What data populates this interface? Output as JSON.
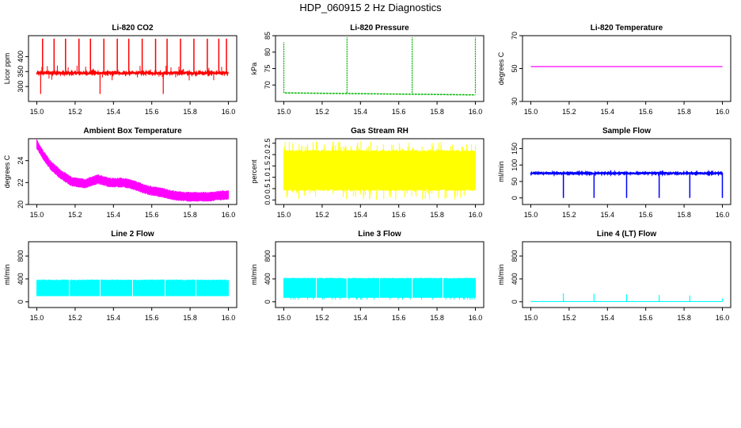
{
  "figure": {
    "title": "HDP_060915  2 Hz Diagnostics"
  },
  "chart_data": [
    {
      "type": "line",
      "title": "Li-820 CO2",
      "xlabel": "",
      "ylabel": "Licor ppm",
      "xlim": [
        15.0,
        16.0
      ],
      "ylim": [
        250,
        470
      ],
      "x_ticks": [
        "15.0",
        "15.2",
        "15.4",
        "15.6",
        "15.8",
        "16.0"
      ],
      "y_ticks": [
        300,
        350,
        400
      ],
      "color": "#ff0000",
      "series": [
        {
          "name": "CO2",
          "baseline": 345,
          "spikes_up_to": 460,
          "spike_x": [
            15.03,
            15.09,
            15.15,
            15.22,
            15.28,
            15.35,
            15.42,
            15.48,
            15.55,
            15.62,
            15.68,
            15.75,
            15.82,
            15.89,
            15.95,
            15.99
          ],
          "dips_to": 275
        }
      ]
    },
    {
      "type": "line",
      "title": "Li-820 Pressure",
      "xlabel": "",
      "ylabel": "kPa",
      "xlim": [
        15.0,
        16.0
      ],
      "ylim": [
        65,
        85
      ],
      "x_ticks": [
        "15.0",
        "15.2",
        "15.4",
        "15.6",
        "15.8",
        "16.0"
      ],
      "y_ticks": [
        70,
        75,
        80,
        85
      ],
      "color": "#00b400",
      "series": [
        {
          "name": "Pressure",
          "start": 67.6,
          "end": 67.0,
          "spike_x": [
            15.0,
            15.33,
            15.67,
            16.0
          ],
          "spike_to": 84.5
        }
      ]
    },
    {
      "type": "line",
      "title": "Li-820 Temperature",
      "xlabel": "",
      "ylabel": "degrees C",
      "xlim": [
        15.0,
        16.0
      ],
      "ylim": [
        30,
        70
      ],
      "x_ticks": [
        "15.0",
        "15.2",
        "15.4",
        "15.6",
        "15.8",
        "16.0"
      ],
      "y_ticks": [
        30,
        50,
        70
      ],
      "color": "#ff00ff",
      "series": [
        {
          "name": "Temperature",
          "value": 51.2
        }
      ]
    },
    {
      "type": "line",
      "title": "Ambient Box Temperature",
      "xlabel": "",
      "ylabel": "degrees C",
      "xlim": [
        15.0,
        16.0
      ],
      "ylim": [
        20,
        26
      ],
      "x_ticks": [
        "15.0",
        "15.2",
        "15.4",
        "15.6",
        "15.8",
        "16.0"
      ],
      "y_ticks": [
        20,
        22,
        24
      ],
      "color": "#ff00ff",
      "series": [
        {
          "name": "Box Temp",
          "points": [
            [
              15.0,
              25.5
            ],
            [
              15.03,
              24.6
            ],
            [
              15.07,
              23.6
            ],
            [
              15.12,
              22.8
            ],
            [
              15.18,
              22.1
            ],
            [
              15.25,
              21.9
            ],
            [
              15.32,
              22.3
            ],
            [
              15.38,
              22.0
            ],
            [
              15.45,
              22.0
            ],
            [
              15.5,
              21.8
            ],
            [
              15.58,
              21.3
            ],
            [
              15.65,
              21.1
            ],
            [
              15.72,
              20.8
            ],
            [
              15.8,
              20.7
            ],
            [
              15.9,
              20.7
            ],
            [
              16.0,
              20.9
            ]
          ]
        }
      ]
    },
    {
      "type": "line",
      "title": "Gas Stream RH",
      "xlabel": "",
      "ylabel": "percent",
      "xlim": [
        15.0,
        16.0
      ],
      "ylim": [
        -0.2,
        2.7
      ],
      "x_ticks": [
        "15.0",
        "15.2",
        "15.4",
        "15.6",
        "15.8",
        "16.0"
      ],
      "y_ticks": [
        0.0,
        0.5,
        1.0,
        1.5,
        2.0,
        2.5
      ],
      "color": "#ffff00",
      "series": [
        {
          "name": "RH",
          "band_low": 0.5,
          "band_high": 2.1,
          "min": 0.0,
          "max": 2.6
        }
      ]
    },
    {
      "type": "line",
      "title": "Sample Flow",
      "xlabel": "",
      "ylabel": "ml/min",
      "xlim": [
        15.0,
        16.0
      ],
      "ylim": [
        -20,
        180
      ],
      "x_ticks": [
        "15.0",
        "15.2",
        "15.4",
        "15.6",
        "15.8",
        "16.0"
      ],
      "y_ticks": [
        0,
        50,
        100,
        150
      ],
      "color": "#0000ff",
      "series": [
        {
          "name": "Sample Flow",
          "value": 75,
          "dip_x": [
            15.17,
            15.33,
            15.5,
            15.67,
            15.83,
            16.0
          ],
          "dip_to": 0
        }
      ]
    },
    {
      "type": "line",
      "title": "Line 2 Flow",
      "xlabel": "",
      "ylabel": "ml/min",
      "xlim": [
        15.0,
        16.0
      ],
      "ylim": [
        -100,
        1050
      ],
      "x_ticks": [
        "15.0",
        "15.2",
        "15.4",
        "15.6",
        "15.8",
        "16.0"
      ],
      "y_ticks": [
        0,
        400,
        800
      ],
      "color": "#00ffff",
      "series": [
        {
          "name": "Line 2 Flow",
          "band_low": 100,
          "band_high": 390,
          "gap_x": [
            15.17,
            15.33,
            15.5,
            15.67,
            15.83
          ]
        }
      ]
    },
    {
      "type": "line",
      "title": "Line 3 Flow",
      "xlabel": "",
      "ylabel": "ml/min",
      "xlim": [
        15.0,
        16.0
      ],
      "ylim": [
        -100,
        1050
      ],
      "x_ticks": [
        "15.0",
        "15.2",
        "15.4",
        "15.6",
        "15.8",
        "16.0"
      ],
      "y_ticks": [
        0,
        400,
        800
      ],
      "color": "#00ffff",
      "series": [
        {
          "name": "Line 3 Flow",
          "band_low": 70,
          "band_high": 420,
          "gap_x": [
            15.17,
            15.33,
            15.5,
            15.67,
            15.83
          ]
        }
      ]
    },
    {
      "type": "line",
      "title": "Line 4 (LT) Flow",
      "xlabel": "",
      "ylabel": "ml/min",
      "xlim": [
        15.0,
        16.0
      ],
      "ylim": [
        -100,
        1050
      ],
      "x_ticks": [
        "15.0",
        "15.2",
        "15.4",
        "15.6",
        "15.8",
        "16.0"
      ],
      "y_ticks": [
        0,
        400,
        800
      ],
      "color": "#00ffff",
      "series": [
        {
          "name": "Line 4 Flow",
          "value": 5,
          "spike_x": [
            15.17,
            15.33,
            15.5,
            15.67,
            15.83
          ],
          "spike_to": 150
        }
      ]
    }
  ]
}
